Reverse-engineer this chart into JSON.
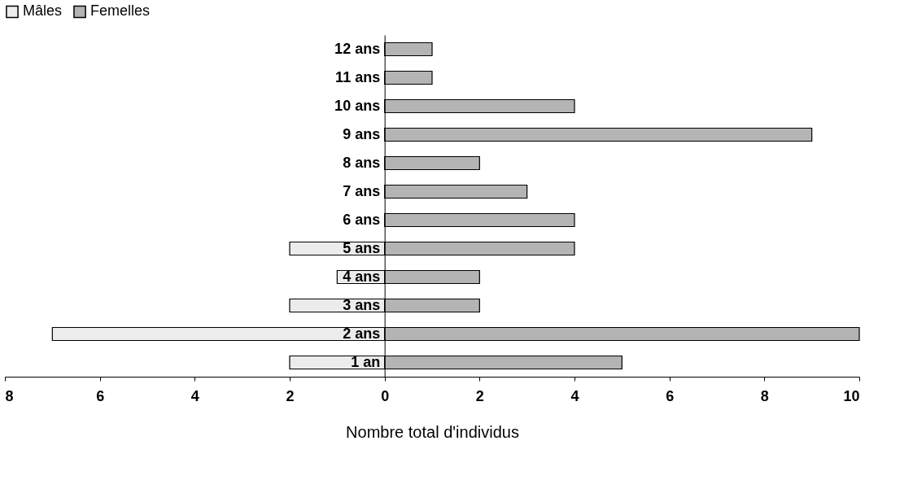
{
  "chart_data": {
    "type": "bar",
    "orientation": "horizontal",
    "stacked": true,
    "categories": [
      "12 ans",
      "11 ans",
      "10 ans",
      "9 ans",
      "8 ans",
      "7 ans",
      "6 ans",
      "5 ans",
      "4 ans",
      "3 ans",
      "2 ans",
      "1 an"
    ],
    "series": [
      {
        "name": "Mâles",
        "color": "#ececec",
        "values": [
          null,
          null,
          null,
          null,
          null,
          null,
          null,
          -2,
          -1,
          -2,
          -7,
          -2
        ]
      },
      {
        "name": "Femelles",
        "color": "#b4b4b4",
        "values": [
          1,
          1,
          4,
          9,
          2,
          3,
          4,
          4,
          2,
          2,
          10,
          5
        ]
      }
    ],
    "xlabel": "Nombre total d'individus",
    "xlim": [
      -8,
      10
    ],
    "xticks": [
      {
        "value": -8,
        "label": "8"
      },
      {
        "value": -6,
        "label": "6"
      },
      {
        "value": -4,
        "label": "4"
      },
      {
        "value": -2,
        "label": "2"
      },
      0,
      2,
      4,
      6,
      8,
      10
    ],
    "legend": "top",
    "grid": false
  }
}
